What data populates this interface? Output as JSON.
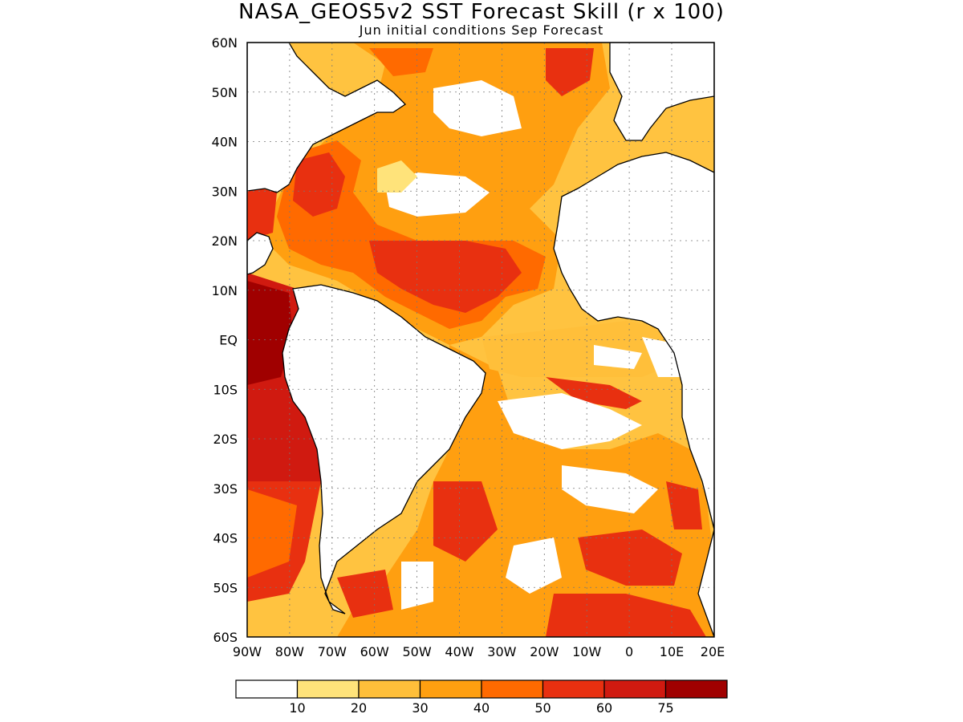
{
  "title": "NASA_GEOS5v2 SST Forecast Skill (r x 100)",
  "subtitle": "Jun initial conditions  Sep Forecast",
  "lat_labels": [
    "60N",
    "50N",
    "40N",
    "30N",
    "20N",
    "10N",
    "EQ",
    "10S",
    "20S",
    "30S",
    "40S",
    "50S",
    "60S"
  ],
  "lon_labels": [
    "90W",
    "80W",
    "70W",
    "60W",
    "50W",
    "40W",
    "30W",
    "20W",
    "10W",
    "0",
    "10E",
    "20E"
  ],
  "colorbar": {
    "labels": [
      "10",
      "20",
      "30",
      "40",
      "50",
      "60",
      "75"
    ],
    "colors": [
      "#ffffff",
      "#ffe37a",
      "#ffbf3a",
      "#ff9f10",
      "#ff6a00",
      "#e83010",
      "#d01a10",
      "#a00000"
    ]
  }
}
